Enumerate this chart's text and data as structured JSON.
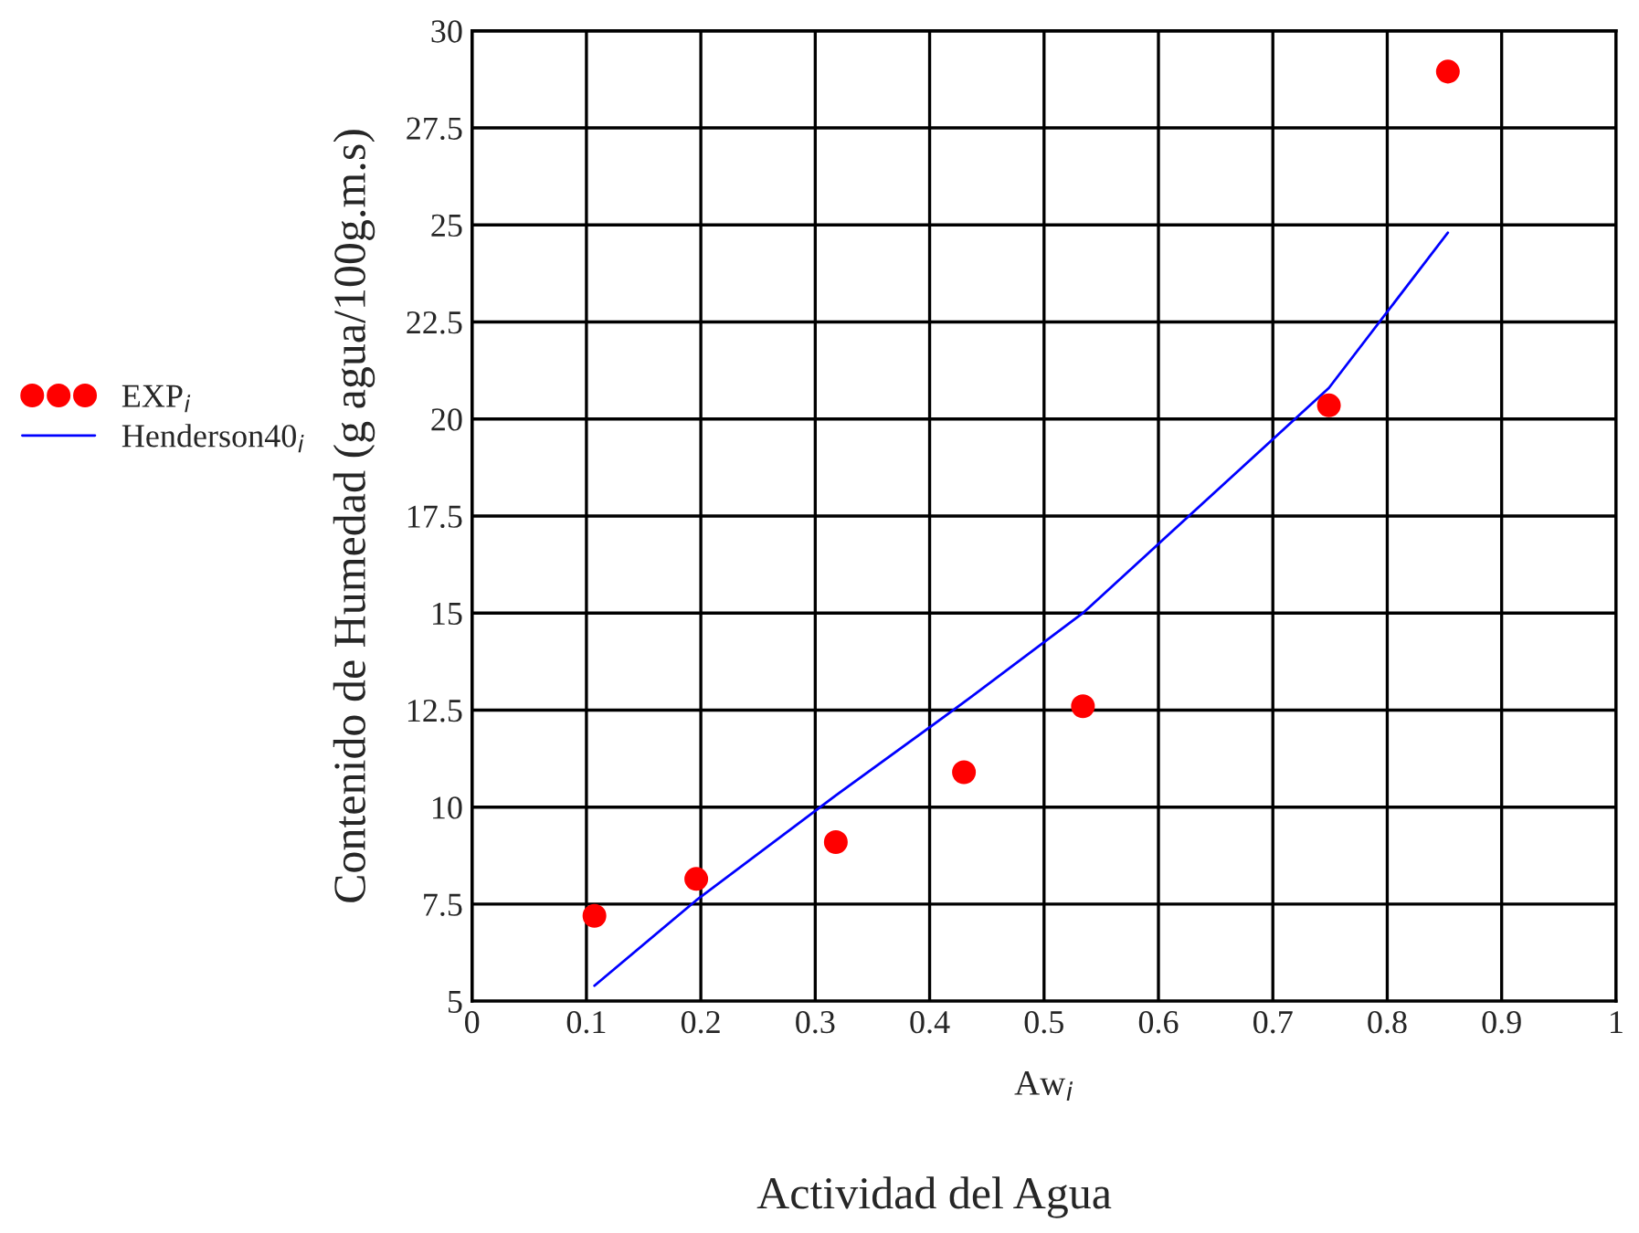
{
  "chart_data": {
    "type": "scatter",
    "xlabel": "Aw$_{i}$",
    "ylabel": "Contenido de Humedad (g agua/100g.m.s)",
    "annotations": [
      "Actividad del Agua"
    ],
    "series": [
      {
        "name": "EXP$_{i}$",
        "color": "#ff0000",
        "marker": "circle",
        "x": [
          0.107,
          0.196,
          0.318,
          0.43,
          0.534,
          0.749,
          0.853
        ],
        "values": [
          7.2,
          8.15,
          9.1,
          10.9,
          12.6,
          20.35,
          28.95
        ]
      },
      {
        "name": "Henderson40$_{i}$",
        "type": "line",
        "color": "#0000ff",
        "line_style": "solid",
        "x": [
          0.107,
          0.196,
          0.318,
          0.43,
          0.534,
          0.749,
          0.853
        ],
        "values": [
          5.4,
          7.6,
          10.3,
          12.7,
          15.0,
          20.8,
          24.8
        ]
      }
    ],
    "xlim": [
      0,
      1
    ],
    "xticks": [
      0,
      0.1,
      0.2,
      0.3,
      0.4,
      0.5,
      0.6,
      0.7,
      0.8,
      0.9,
      1
    ],
    "ylim": [
      5,
      30
    ],
    "yticks": [
      5,
      7.5,
      10,
      12.5,
      15,
      17.5,
      20,
      22.5,
      25,
      27.5,
      30
    ],
    "grid": true,
    "legend": "left"
  }
}
